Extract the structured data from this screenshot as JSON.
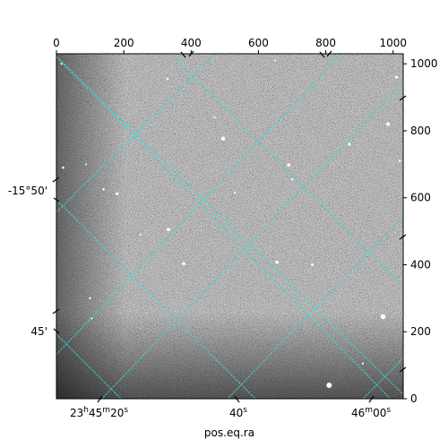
{
  "chart_data": {
    "type": "heatmap",
    "description_kind": "astronomical image with WCS grid",
    "colormap": "gray",
    "grid": true,
    "grid_color": "#3fd6d6",
    "pixel_axes": {
      "x": {
        "ticks": [
          0,
          200,
          400,
          600,
          800,
          1000
        ],
        "range": [
          0,
          1030
        ],
        "position": "top"
      },
      "y": {
        "ticks": [
          0,
          200,
          400,
          600,
          800,
          1000
        ],
        "range": [
          0,
          1030
        ],
        "position": "right"
      }
    },
    "world_axes": {
      "xlabel": "pos.eq.ra",
      "ra_ticks": [
        {
          "label_main": "23",
          "sup_h": "h",
          "m": "45",
          "sup_m": "m",
          "s": "20",
          "sup_s": "s"
        },
        {
          "label_main": "40",
          "sup_s": "s"
        },
        {
          "label_main": "46",
          "sup_m": "m",
          "s": "00",
          "sup_s": "s"
        }
      ],
      "dec_ticks": [
        "-15°50'",
        "45'"
      ]
    },
    "stars": [
      {
        "x": 495,
        "y": 777,
        "r": 2.2
      },
      {
        "x": 870,
        "y": 760,
        "r": 1.6
      },
      {
        "x": 690,
        "y": 698,
        "r": 1.8
      },
      {
        "x": 333,
        "y": 505,
        "r": 2.0
      },
      {
        "x": 378,
        "y": 403,
        "r": 1.8
      },
      {
        "x": 655,
        "y": 408,
        "r": 1.8
      },
      {
        "x": 760,
        "y": 400,
        "r": 1.4
      },
      {
        "x": 970,
        "y": 245,
        "r": 2.8
      },
      {
        "x": 810,
        "y": 40,
        "r": 3.0
      },
      {
        "x": 985,
        "y": 820,
        "r": 2.0
      },
      {
        "x": 180,
        "y": 612,
        "r": 1.5
      },
      {
        "x": 140,
        "y": 625,
        "r": 1.2
      },
      {
        "x": 100,
        "y": 300,
        "r": 1.2
      },
      {
        "x": 105,
        "y": 240,
        "r": 1.2
      },
      {
        "x": 330,
        "y": 955,
        "r": 1.2
      },
      {
        "x": 1010,
        "y": 960,
        "r": 1.5
      },
      {
        "x": 1020,
        "y": 710,
        "r": 1.2
      },
      {
        "x": 700,
        "y": 655,
        "r": 1.2
      },
      {
        "x": 530,
        "y": 615,
        "r": 1.1
      },
      {
        "x": 250,
        "y": 490,
        "r": 1.0
      },
      {
        "x": 470,
        "y": 840,
        "r": 1.1
      },
      {
        "x": 20,
        "y": 690,
        "r": 1.3
      },
      {
        "x": 88,
        "y": 700,
        "r": 1.0
      },
      {
        "x": 15,
        "y": 1000,
        "r": 1.1
      },
      {
        "x": 650,
        "y": 1010,
        "r": 1.0
      },
      {
        "x": 910,
        "y": 105,
        "r": 1.1
      }
    ]
  }
}
